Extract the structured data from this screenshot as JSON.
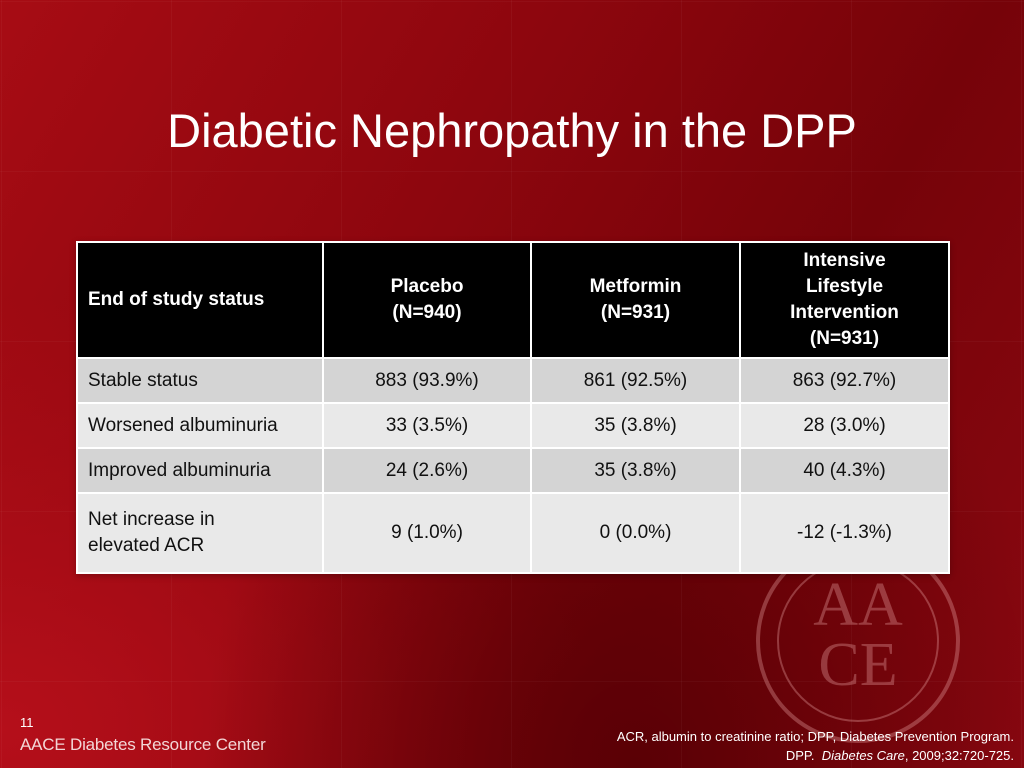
{
  "slide": {
    "title": "Diabetic Nephropathy in the DPP",
    "page_number": "11",
    "brand": "AACE Diabetes Resource Center",
    "footnote": {
      "line1": "ACR, albumin to creatinine ratio; DPP, Diabetes Prevention Program.",
      "line2_prefix": "DPP.  ",
      "line2_journal": "Diabetes Care",
      "line2_suffix": ", 2009;32:720-725."
    },
    "watermark": {
      "letters_top": "AA",
      "letters_bottom": "CE"
    }
  },
  "table": {
    "headers": [
      [
        "End of study status"
      ],
      [
        "Placebo",
        "(N=940)"
      ],
      [
        "Metformin",
        "(N=931)"
      ],
      [
        "Intensive",
        "Lifestyle",
        "Intervention",
        "(N=931)"
      ]
    ],
    "rows": [
      {
        "label": [
          "Stable status"
        ],
        "values": [
          "883 (93.9%)",
          "861 (92.5%)",
          "863 (92.7%)"
        ]
      },
      {
        "label": [
          "Worsened albuminuria"
        ],
        "values": [
          "33 (3.5%)",
          "35 (3.8%)",
          "28 (3.0%)"
        ]
      },
      {
        "label": [
          "Improved albuminuria"
        ],
        "values": [
          "24 (2.6%)",
          "35 (3.8%)",
          "40 (4.3%)"
        ]
      },
      {
        "label": [
          "Net increase in",
          "elevated ACR"
        ],
        "values": [
          "9 (1.0%)",
          "0 (0.0%)",
          "-12 (-1.3%)"
        ]
      }
    ]
  },
  "colors": {
    "background": "#8d060e",
    "header_fill": "#000000",
    "row_fill_odd": "#d4d4d4",
    "row_fill_even": "#e9e9e9"
  }
}
